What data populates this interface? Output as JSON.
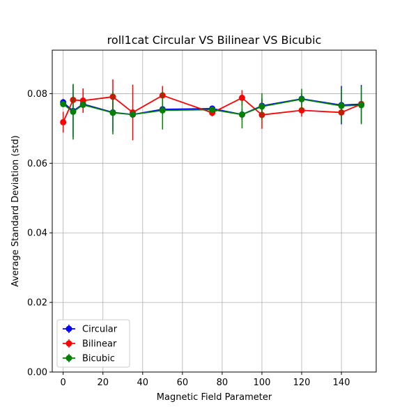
{
  "chart_data": {
    "type": "line",
    "title": "roll1cat Circular VS Bilinear VS Bicubic",
    "xlabel": "Magnetic Field Parameter",
    "ylabel": "Average Standard Deviation (std)",
    "xlim": [
      -5.5,
      157.5
    ],
    "ylim": [
      0.0,
      0.0925
    ],
    "xticks": [
      0,
      20,
      40,
      60,
      80,
      100,
      120,
      140
    ],
    "yticks": [
      0.0,
      0.02,
      0.04,
      0.06,
      0.08
    ],
    "ytick_labels": [
      "0.00",
      "0.02",
      "0.04",
      "0.06",
      "0.08"
    ],
    "grid": true,
    "legend": "lower-left",
    "x": [
      0,
      5,
      10,
      25,
      35,
      50,
      75,
      90,
      100,
      120,
      140,
      150
    ],
    "series": [
      {
        "name": "Circular",
        "color": "#0000ff",
        "values": [
          0.0775,
          0.075,
          0.077,
          0.0746,
          0.074,
          0.0755,
          0.0757,
          0.074,
          0.0765,
          0.0785,
          0.0767,
          0.077
        ],
        "errors": [
          0.001,
          0.0075,
          0.0012,
          0.0055,
          0.001,
          0.0015,
          0.0007,
          0.0015,
          0.002,
          0.0015,
          0.0055,
          0.0055
        ]
      },
      {
        "name": "Bilinear",
        "color": "#ff0000",
        "values": [
          0.0718,
          0.0782,
          0.078,
          0.0791,
          0.0746,
          0.0795,
          0.0745,
          0.0788,
          0.0739,
          0.0752,
          0.0746,
          0.077
        ],
        "errors": [
          0.003,
          0.001,
          0.0035,
          0.005,
          0.008,
          0.0027,
          0.001,
          0.0022,
          0.004,
          0.0018,
          0.001,
          0.0008
        ]
      },
      {
        "name": "Bicubic",
        "color": "#008000",
        "values": [
          0.077,
          0.0748,
          0.0768,
          0.0745,
          0.074,
          0.0752,
          0.0754,
          0.074,
          0.0763,
          0.0784,
          0.0765,
          0.0767
        ],
        "errors": [
          0.0008,
          0.008,
          0.001,
          0.0062,
          0.0008,
          0.0055,
          0.0008,
          0.004,
          0.0038,
          0.003,
          0.005,
          0.0055
        ]
      }
    ]
  }
}
